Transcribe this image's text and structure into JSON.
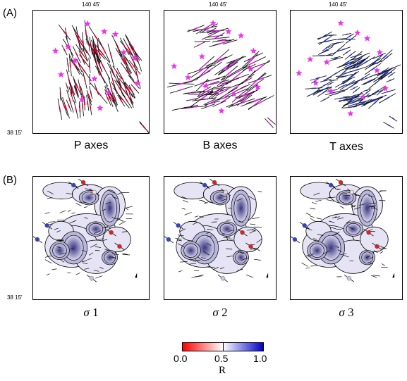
{
  "section_a": {
    "label": "(A)",
    "top_tick": "140 45'",
    "left_tick": "38 15'",
    "panels": [
      {
        "id": "p",
        "title": "P axes",
        "bar_color": "#cc0033",
        "star_color": "#ee33ee"
      },
      {
        "id": "b",
        "title": "B axes",
        "bar_color": "#cc33cc",
        "star_color": "#ee33ee"
      },
      {
        "id": "t",
        "title": "T axes",
        "bar_color": "#2233bb",
        "star_color": "#ee33ee"
      }
    ]
  },
  "section_b": {
    "label": "(B)",
    "left_tick": "38 15'",
    "panels": [
      {
        "id": "s1",
        "symbol": "σ",
        "index": "1"
      },
      {
        "id": "s2",
        "symbol": "σ",
        "index": "2"
      },
      {
        "id": "s3",
        "symbol": "σ",
        "index": "3"
      }
    ]
  },
  "colorbar": {
    "title": "R",
    "ticks": [
      "0.0",
      "0.5",
      "1.0"
    ],
    "low_color": "#ff0000",
    "mid_color": "#ffffff",
    "high_color": "#0000cc"
  },
  "colors": {
    "contour_fill_dark": "#3a3580",
    "contour_fill_light": "#d8d6ee",
    "dot_red": "#dd2222",
    "dot_blue": "#3344cc"
  }
}
